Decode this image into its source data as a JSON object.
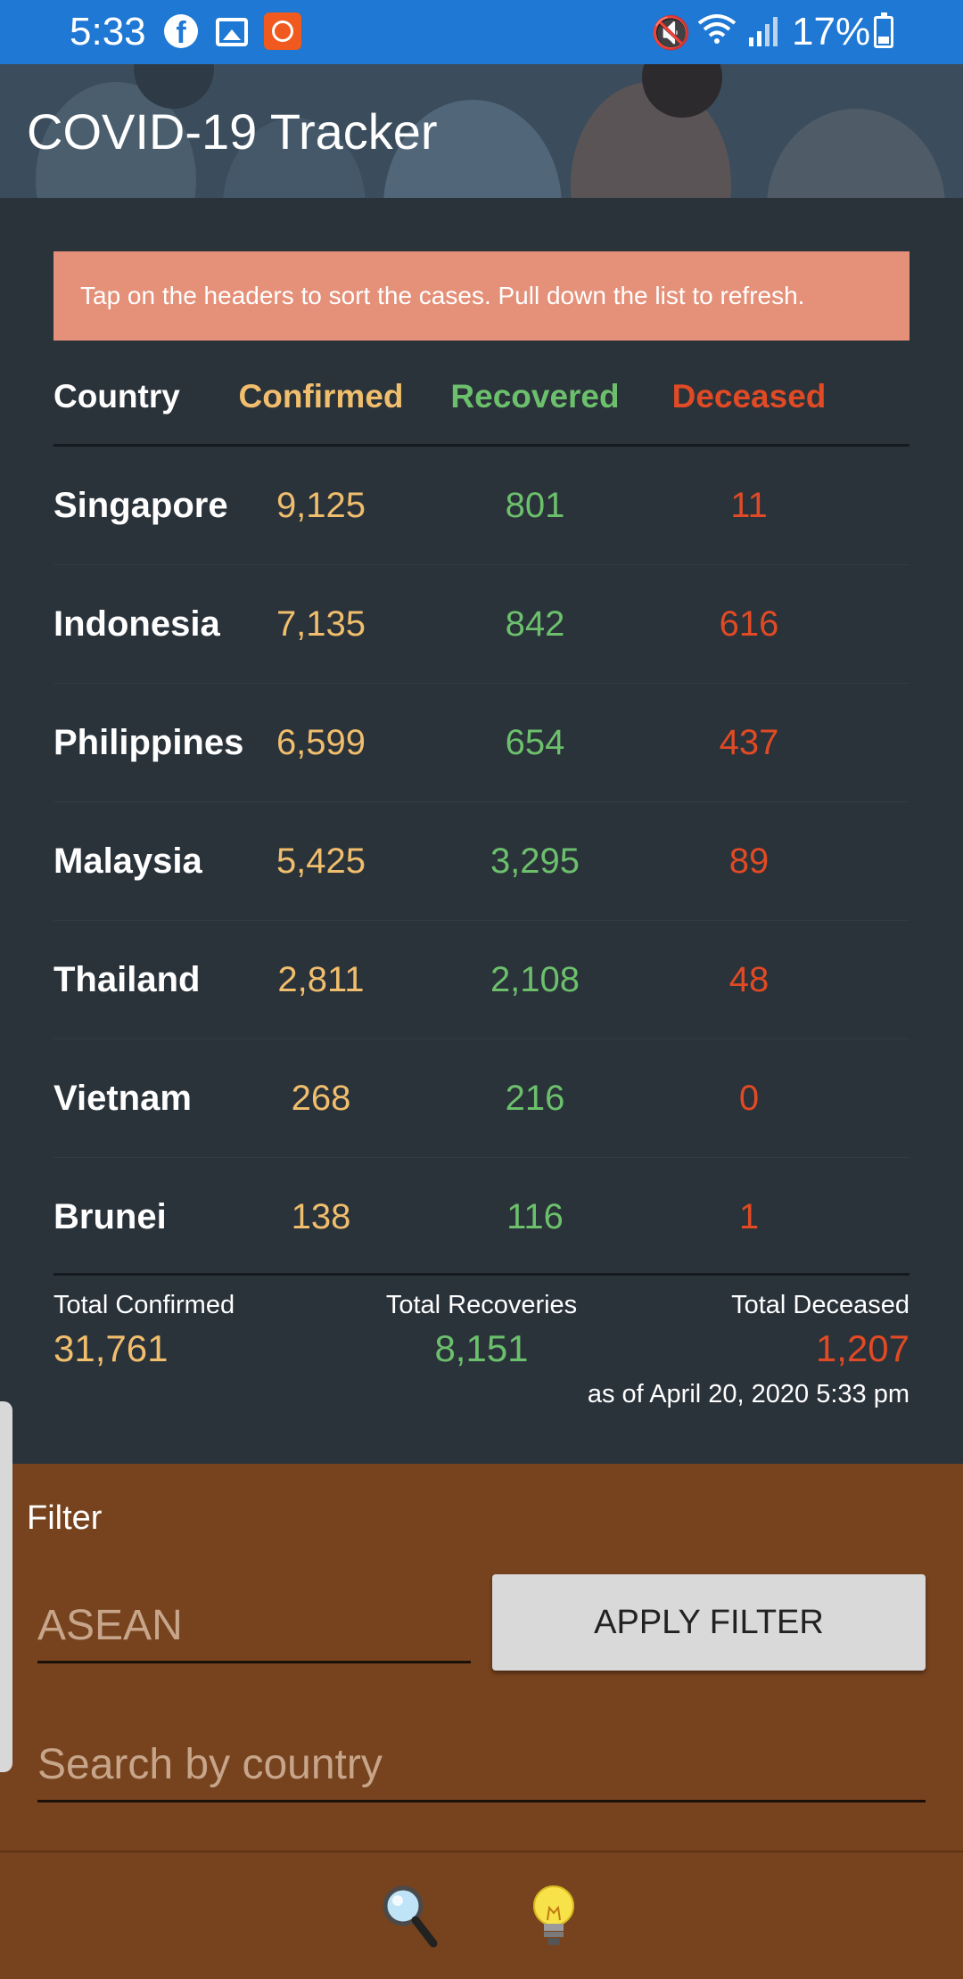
{
  "status_bar": {
    "time": "5:33",
    "battery": "17%",
    "icons": [
      "facebook-icon",
      "gallery-icon",
      "app-icon",
      "mute-icon",
      "wifi-icon",
      "signal-icon",
      "battery-icon"
    ]
  },
  "header": {
    "title": "COVID-19 Tracker"
  },
  "banner": {
    "text": "Tap on the headers to sort the cases. Pull down the list to refresh."
  },
  "table": {
    "headers": {
      "country": "Country",
      "confirmed": "Confirmed",
      "recovered": "Recovered",
      "deceased": "Deceased"
    },
    "rows": [
      {
        "country": "Singapore",
        "confirmed": "9,125",
        "recovered": "801",
        "deceased": "11"
      },
      {
        "country": "Indonesia",
        "confirmed": "7,135",
        "recovered": "842",
        "deceased": "616"
      },
      {
        "country": "Philippines",
        "confirmed": "6,599",
        "recovered": "654",
        "deceased": "437"
      },
      {
        "country": "Malaysia",
        "confirmed": "5,425",
        "recovered": "3,295",
        "deceased": "89"
      },
      {
        "country": "Thailand",
        "confirmed": "2,811",
        "recovered": "2,108",
        "deceased": "48"
      },
      {
        "country": "Vietnam",
        "confirmed": "268",
        "recovered": "216",
        "deceased": "0"
      },
      {
        "country": "Brunei",
        "confirmed": "138",
        "recovered": "116",
        "deceased": "1"
      }
    ]
  },
  "totals": {
    "confirmed_label": "Total Confirmed",
    "confirmed": "31,761",
    "recoveries_label": "Total Recoveries",
    "recoveries": "8,151",
    "deceased_label": "Total Deceased",
    "deceased": "1,207",
    "as_of": "as of April 20, 2020 5:33 pm"
  },
  "filter": {
    "label": "Filter",
    "region_placeholder": "ASEAN",
    "apply_label": "APPLY FILTER",
    "search_placeholder": "Search by country"
  },
  "bottom_nav": {
    "icons": [
      "search-icon",
      "lightbulb-icon"
    ]
  },
  "colors": {
    "status_bar": "#1e78d4",
    "background": "#2a323a",
    "banner": "#e59078",
    "confirmed": "#f0be6c",
    "recovered": "#6cc06c",
    "deceased": "#e04a24",
    "panel": "#77431e"
  }
}
